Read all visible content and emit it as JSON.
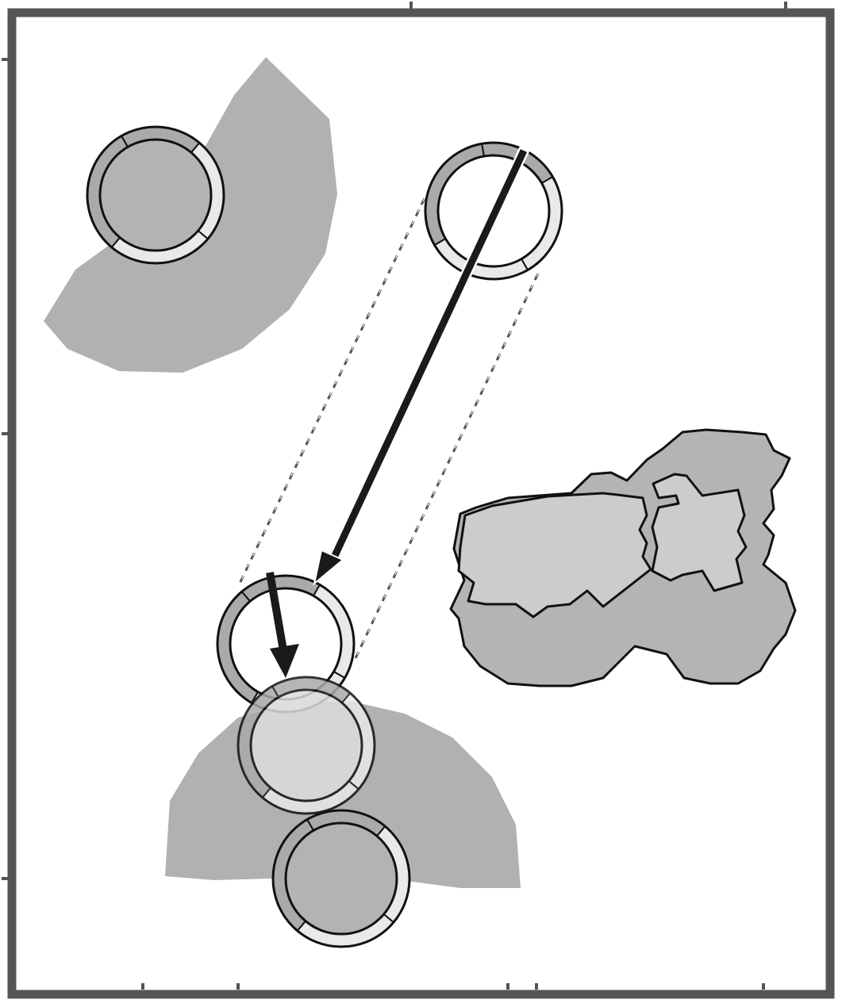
{
  "colors": {
    "border": "#555555",
    "area_fill": "#b0b1b3",
    "terrain_dark": "#b3b4b6",
    "terrain_light": "#cbcccd",
    "ring_dark": "#a9aaac",
    "ring_light": "#e8e9ea",
    "unit_fill_dark": "#b2b3b5",
    "unit_fill_light": "#dcdddd",
    "unit_fill_empty": "#ffffff",
    "move_arrow": "#1a1a1a",
    "path_line": "#555555"
  },
  "icons": {
    "unit_token": "circle-token-icon",
    "move_arrow": "arrow-icon",
    "terrain": "terrain-blob-icon",
    "range_area": "range-sector-icon"
  },
  "units": [
    {
      "id": "unit-top-left",
      "state": "enemy-in-range",
      "fill": "dark"
    },
    {
      "id": "unit-top-right",
      "state": "origin",
      "fill": "empty"
    },
    {
      "id": "unit-middle",
      "state": "destination",
      "fill": "empty"
    },
    {
      "id": "unit-ghost",
      "state": "ghost",
      "fill": "light"
    },
    {
      "id": "unit-bottom",
      "state": "enemy-in-range",
      "fill": "dark"
    }
  ]
}
